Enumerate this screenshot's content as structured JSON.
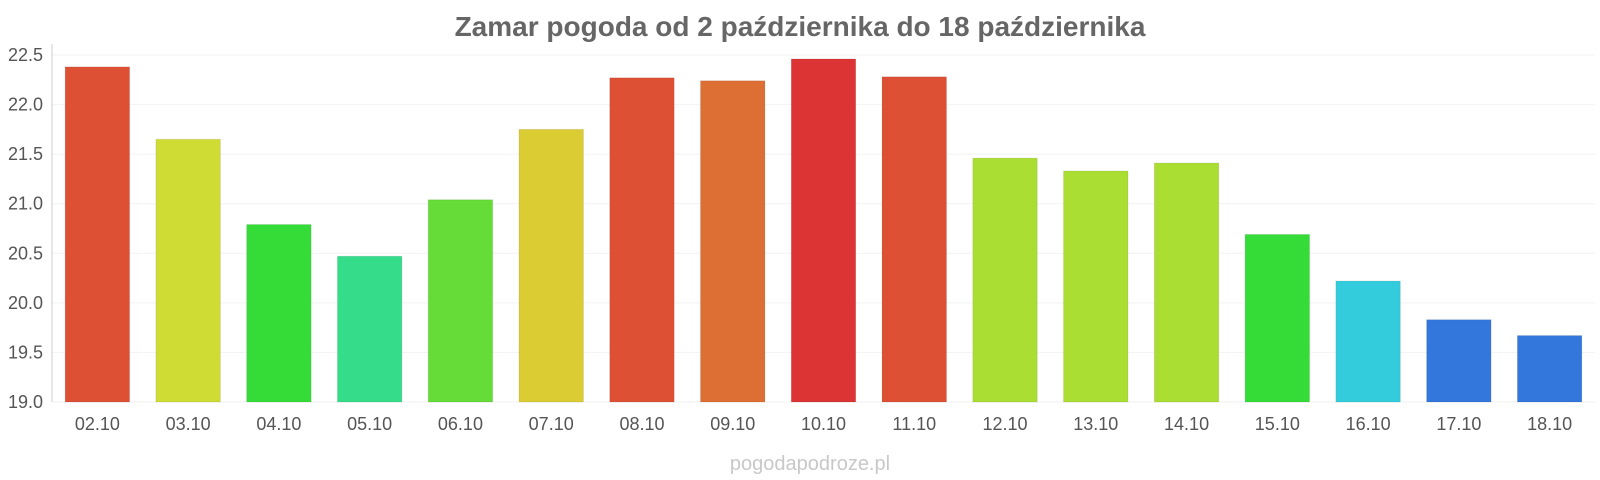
{
  "chart_data": {
    "type": "bar",
    "title": "Zamar pogoda od 2 października do 18 października",
    "xlabel": "",
    "ylabel": "",
    "categories": [
      "02.10",
      "03.10",
      "04.10",
      "05.10",
      "06.10",
      "07.10",
      "08.10",
      "09.10",
      "10.10",
      "11.10",
      "12.10",
      "13.10",
      "14.10",
      "15.10",
      "16.10",
      "17.10",
      "18.10"
    ],
    "values": [
      22.38,
      21.65,
      20.79,
      20.47,
      21.04,
      21.75,
      22.27,
      22.24,
      22.46,
      22.28,
      21.46,
      21.33,
      21.41,
      20.69,
      20.22,
      19.83,
      19.67
    ],
    "colors": [
      "#dd5034",
      "#cfdc33",
      "#35dc38",
      "#35dc8a",
      "#66dc38",
      "#dbcc33",
      "#dd5034",
      "#dd6f34",
      "#dc3434",
      "#dd5034",
      "#aade33",
      "#aade33",
      "#aade33",
      "#35dc38",
      "#33ccdc",
      "#3477dc",
      "#3477dc"
    ],
    "ylim": [
      19.0,
      22.5
    ],
    "yticks": [
      "19.0",
      "19.5",
      "20.0",
      "20.5",
      "21.0",
      "21.5",
      "22.0",
      "22.5"
    ],
    "grid": true,
    "legend": "none"
  },
  "watermark": "pogodapodroze.pl"
}
